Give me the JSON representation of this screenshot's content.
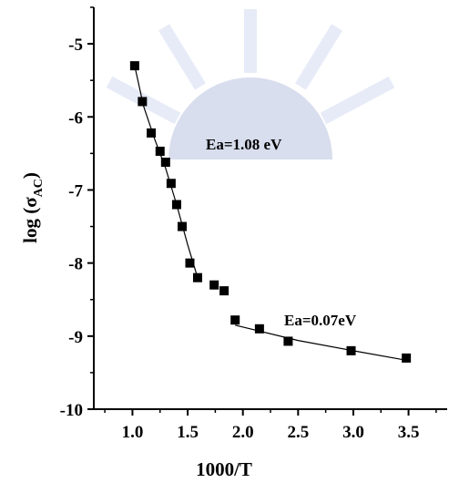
{
  "chart_data": {
    "type": "scatter",
    "x_label": "1000/T",
    "y_label_parts": [
      "log (σ",
      "AC",
      ")"
    ],
    "annotations": [
      "Ea=1.08 eV",
      "Ea=0.07eV"
    ],
    "series": [
      {
        "color": "#000000",
        "x": [
          1.02,
          1.09,
          1.17,
          1.25,
          1.3,
          1.35,
          1.4,
          1.45,
          1.52,
          1.59,
          1.74,
          1.83,
          1.93,
          2.15,
          2.41,
          2.98,
          3.48
        ],
        "values": [
          -5.3,
          -5.79,
          -6.22,
          -6.47,
          -6.62,
          -6.91,
          -7.2,
          -7.5,
          -8.0,
          -8.2,
          -8.3,
          -8.38,
          -8.78,
          -8.9,
          -9.07,
          -9.2,
          -9.3
        ]
      }
    ],
    "fits": [
      {
        "color": "#000000",
        "x": [
          1.02,
          1.1,
          1.2,
          1.3,
          1.4,
          1.5,
          1.6
        ],
        "values": [
          -5.3,
          -5.85,
          -6.3,
          -6.7,
          -7.2,
          -7.75,
          -8.25
        ]
      },
      {
        "color": "#000000",
        "x": [
          1.93,
          2.5,
          3.0,
          3.48
        ],
        "values": [
          -8.85,
          -9.06,
          -9.2,
          -9.33
        ]
      }
    ],
    "xlim": [
      0.65,
      3.85
    ],
    "ylim": [
      -10,
      -4.5
    ],
    "xticks": [
      {
        "value": 1,
        "label": "1.0"
      },
      1.5,
      {
        "value": 2,
        "label": "2.0"
      },
      2.5,
      {
        "value": 3,
        "label": "3.0"
      },
      3.5
    ],
    "yticks": [
      -10,
      -9,
      -8,
      -7,
      -6,
      -5
    ],
    "xminorticks": [
      0.75,
      1.25,
      1.75,
      2.25,
      2.75,
      3.25,
      3.75
    ],
    "yminorticks": [
      -9.5,
      -8.5,
      -7.5,
      -6.5,
      -5.5,
      -4.5
    ]
  }
}
